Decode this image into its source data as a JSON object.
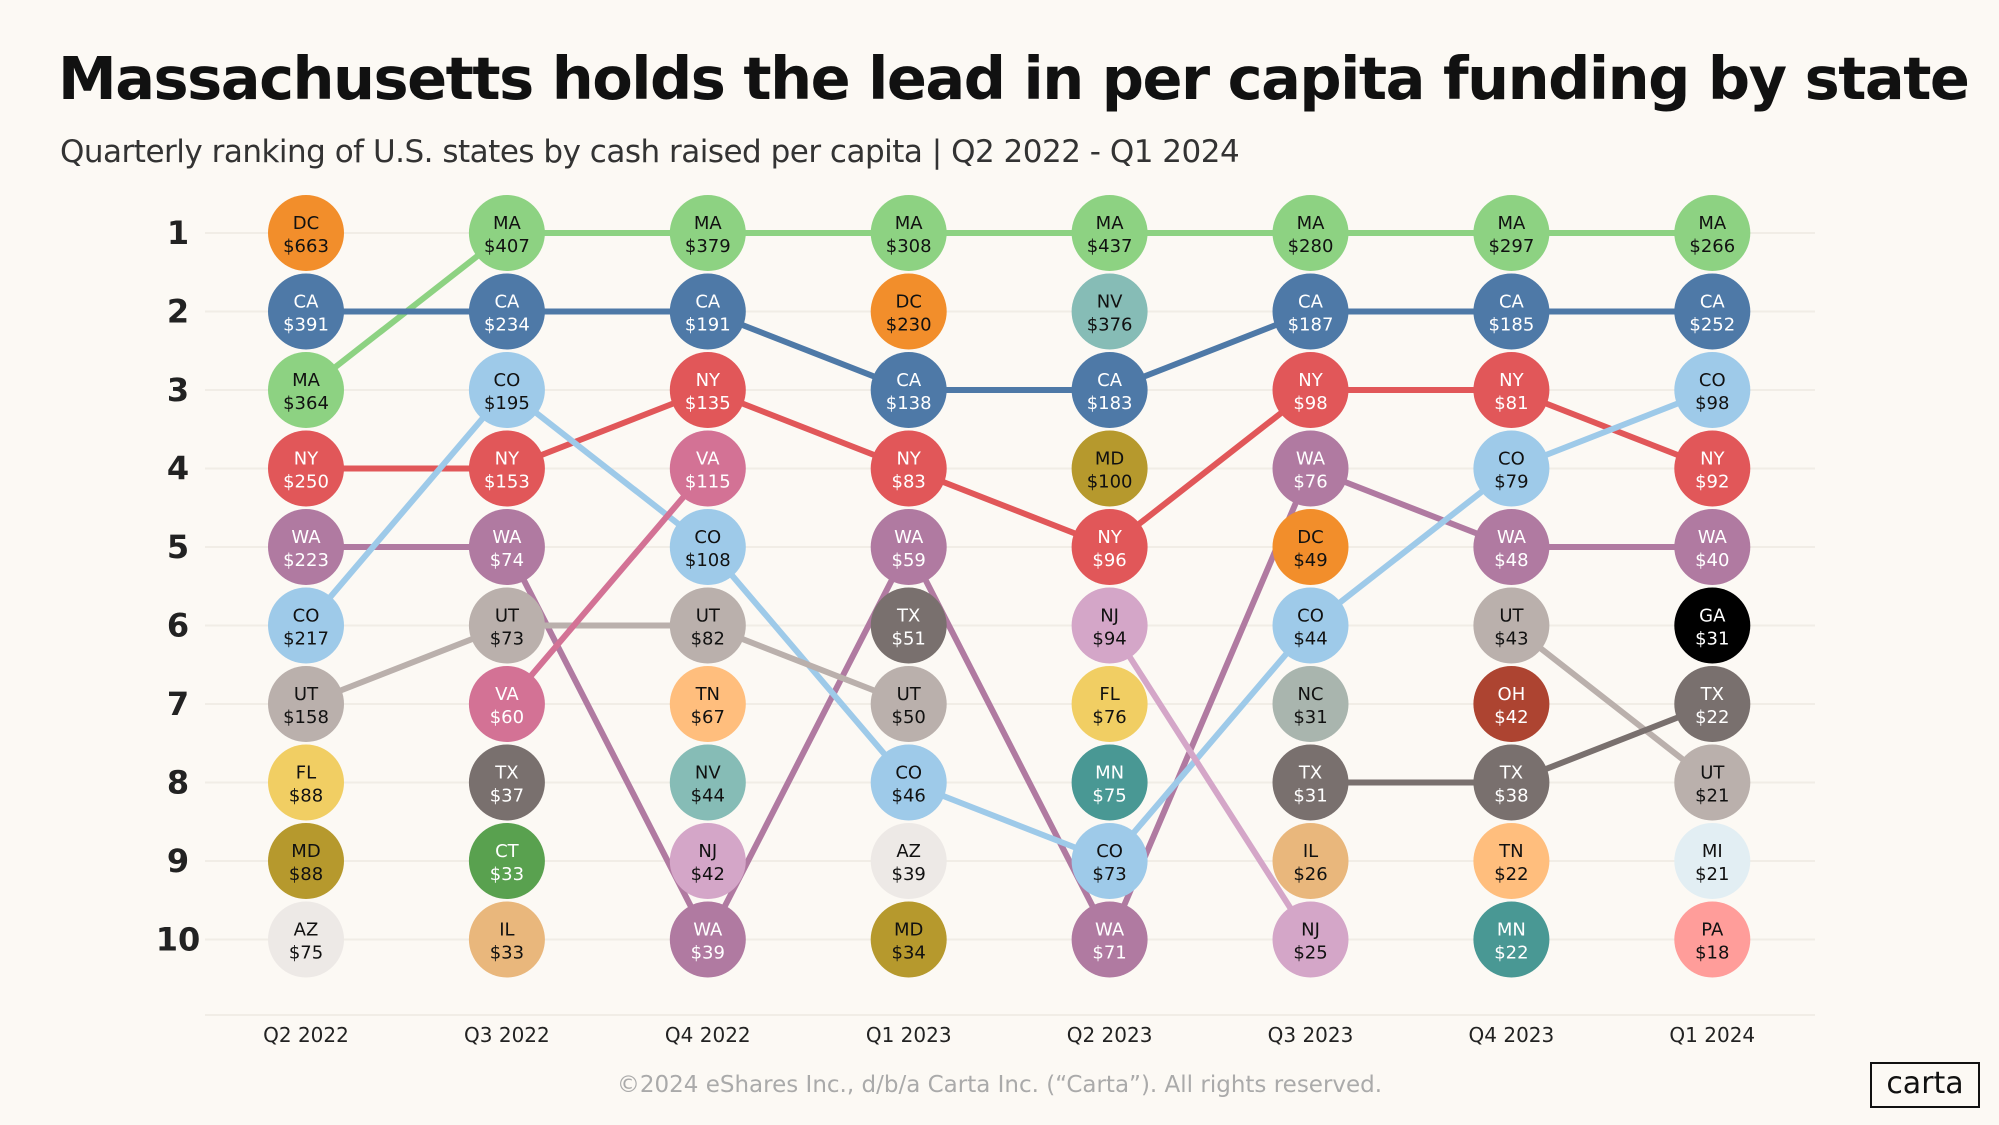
{
  "chart_data": {
    "type": "bump",
    "title": "Massachusetts holds the lead in per capita funding by state",
    "subtitle": "Quarterly ranking of U.S. states by cash raised per capita | Q2 2022 - Q1 2024",
    "ranks": [
      "1",
      "2",
      "3",
      "4",
      "5",
      "6",
      "7",
      "8",
      "9",
      "10"
    ],
    "quarters": [
      {
        "label": "Q2 2022",
        "entries": [
          [
            "DC",
            "$663"
          ],
          [
            "CA",
            "$391"
          ],
          [
            "MA",
            "$364"
          ],
          [
            "NY",
            "$250"
          ],
          [
            "WA",
            "$223"
          ],
          [
            "CO",
            "$217"
          ],
          [
            "UT",
            "$158"
          ],
          [
            "FL",
            "$88"
          ],
          [
            "MD",
            "$88"
          ],
          [
            "AZ",
            "$75"
          ]
        ]
      },
      {
        "label": "Q3 2022",
        "entries": [
          [
            "MA",
            "$407"
          ],
          [
            "CA",
            "$234"
          ],
          [
            "CO",
            "$195"
          ],
          [
            "NY",
            "$153"
          ],
          [
            "WA",
            "$74"
          ],
          [
            "UT",
            "$73"
          ],
          [
            "VA",
            "$60"
          ],
          [
            "TX",
            "$37"
          ],
          [
            "CT",
            "$33"
          ],
          [
            "IL",
            "$33"
          ]
        ]
      },
      {
        "label": "Q4 2022",
        "entries": [
          [
            "MA",
            "$379"
          ],
          [
            "CA",
            "$191"
          ],
          [
            "NY",
            "$135"
          ],
          [
            "VA",
            "$115"
          ],
          [
            "CO",
            "$108"
          ],
          [
            "UT",
            "$82"
          ],
          [
            "TN",
            "$67"
          ],
          [
            "NV",
            "$44"
          ],
          [
            "NJ",
            "$42"
          ],
          [
            "WA",
            "$39"
          ]
        ]
      },
      {
        "label": "Q1 2023",
        "entries": [
          [
            "MA",
            "$308"
          ],
          [
            "DC",
            "$230"
          ],
          [
            "CA",
            "$138"
          ],
          [
            "NY",
            "$83"
          ],
          [
            "WA",
            "$59"
          ],
          [
            "TX",
            "$51"
          ],
          [
            "UT",
            "$50"
          ],
          [
            "CO",
            "$46"
          ],
          [
            "AZ",
            "$39"
          ],
          [
            "MD",
            "$34"
          ]
        ]
      },
      {
        "label": "Q2 2023",
        "entries": [
          [
            "MA",
            "$437"
          ],
          [
            "NV",
            "$376"
          ],
          [
            "CA",
            "$183"
          ],
          [
            "MD",
            "$100"
          ],
          [
            "NY",
            "$96"
          ],
          [
            "NJ",
            "$94"
          ],
          [
            "FL",
            "$76"
          ],
          [
            "MN",
            "$75"
          ],
          [
            "CO",
            "$73"
          ],
          [
            "WA",
            "$71"
          ]
        ]
      },
      {
        "label": "Q3 2023",
        "entries": [
          [
            "MA",
            "$280"
          ],
          [
            "CA",
            "$187"
          ],
          [
            "NY",
            "$98"
          ],
          [
            "WA",
            "$76"
          ],
          [
            "DC",
            "$49"
          ],
          [
            "CO",
            "$44"
          ],
          [
            "NC",
            "$31"
          ],
          [
            "TX",
            "$31"
          ],
          [
            "IL",
            "$26"
          ],
          [
            "NJ",
            "$25"
          ]
        ]
      },
      {
        "label": "Q4 2023",
        "entries": [
          [
            "MA",
            "$297"
          ],
          [
            "CA",
            "$185"
          ],
          [
            "NY",
            "$81"
          ],
          [
            "CO",
            "$79"
          ],
          [
            "WA",
            "$48"
          ],
          [
            "UT",
            "$43"
          ],
          [
            "OH",
            "$42"
          ],
          [
            "TX",
            "$38"
          ],
          [
            "TN",
            "$22"
          ],
          [
            "MN",
            "$22"
          ]
        ]
      },
      {
        "label": "Q1 2024",
        "entries": [
          [
            "MA",
            "$266"
          ],
          [
            "CA",
            "$252"
          ],
          [
            "CO",
            "$98"
          ],
          [
            "NY",
            "$92"
          ],
          [
            "WA",
            "$40"
          ],
          [
            "GA",
            "$31"
          ],
          [
            "TX",
            "$22"
          ],
          [
            "UT",
            "$21"
          ],
          [
            "MI",
            "$21"
          ],
          [
            "PA",
            "$18"
          ]
        ]
      }
    ],
    "connected_states": [
      "MA",
      "CA",
      "NY",
      "WA",
      "CO",
      "UT",
      "VA",
      "NJ",
      "TX"
    ],
    "colors": {
      "MA": "#8DD282",
      "CA": "#4E79A7",
      "NY": "#E15759",
      "WA": "#B07AA1",
      "CO": "#9ECAE9",
      "UT": "#BAB0AC",
      "VA": "#D37295",
      "NJ": "#D4A6C8",
      "TX": "#79706E",
      "DC": "#F28E2B",
      "FL": "#F1CE63",
      "MD": "#B6992D",
      "AZ": "#EDE9E6",
      "CT": "#59A14F",
      "IL": "#E9B77C",
      "TN": "#FFBE7D",
      "NV": "#86BCB6",
      "MN": "#499894",
      "NC": "#A9B5AE",
      "OH": "#AD4431",
      "GA": "#000000",
      "MI": "#E2EEF3",
      "PA": "#FF9D9A"
    },
    "light_text_states": [
      "CA",
      "NY",
      "WA",
      "VA",
      "TX",
      "CT",
      "MN",
      "OH",
      "GA"
    ],
    "grid": true
  },
  "footer": "©2024 eShares Inc., d/b/a Carta Inc. (“Carta”). All rights reserved.",
  "logo": "carta"
}
